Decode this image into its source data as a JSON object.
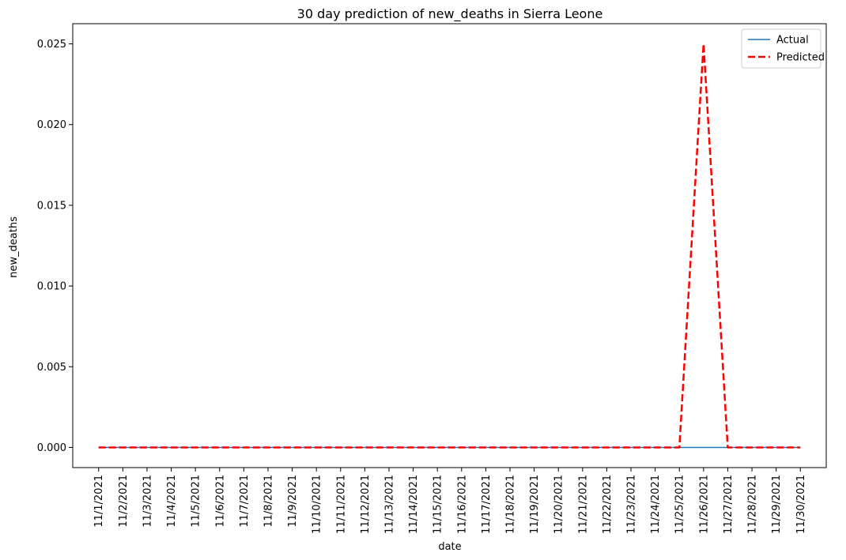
{
  "chart_data": {
    "type": "line",
    "title": "30 day prediction of new_deaths in Sierra Leone",
    "xlabel": "date",
    "ylabel": "new_deaths",
    "categories": [
      "11/1/2021",
      "11/2/2021",
      "11/3/2021",
      "11/4/2021",
      "11/5/2021",
      "11/6/2021",
      "11/7/2021",
      "11/8/2021",
      "11/9/2021",
      "11/10/2021",
      "11/11/2021",
      "11/12/2021",
      "11/13/2021",
      "11/14/2021",
      "11/15/2021",
      "11/16/2021",
      "11/17/2021",
      "11/18/2021",
      "11/19/2021",
      "11/20/2021",
      "11/21/2021",
      "11/22/2021",
      "11/23/2021",
      "11/24/2021",
      "11/25/2021",
      "11/26/2021",
      "11/27/2021",
      "11/28/2021",
      "11/29/2021",
      "11/30/2021"
    ],
    "ylim": [
      -0.00125,
      0.02625
    ],
    "yticks": [
      "0.000",
      "0.005",
      "0.010",
      "0.015",
      "0.020",
      "0.025"
    ],
    "ytick_values": [
      0,
      0.005,
      0.01,
      0.015,
      0.02,
      0.025
    ],
    "series": [
      {
        "name": "Actual",
        "color": "#1f77b4",
        "style": "solid",
        "values": [
          0,
          0,
          0,
          0,
          0,
          0,
          0,
          0,
          0,
          0,
          0,
          0,
          0,
          0,
          0,
          0,
          0,
          0,
          0,
          0,
          0,
          0,
          0,
          0,
          0,
          0,
          0,
          0,
          0,
          0
        ]
      },
      {
        "name": "Predicted",
        "color": "#ff0000",
        "style": "dashed",
        "values": [
          0,
          0,
          0,
          0,
          0,
          0,
          0,
          0,
          0,
          0,
          0,
          0,
          0,
          0,
          0,
          0,
          0,
          0,
          0,
          0,
          0,
          0,
          0,
          0,
          0,
          0.025,
          0,
          0,
          0,
          0
        ]
      }
    ],
    "legend_position": "top-right",
    "grid": false
  }
}
